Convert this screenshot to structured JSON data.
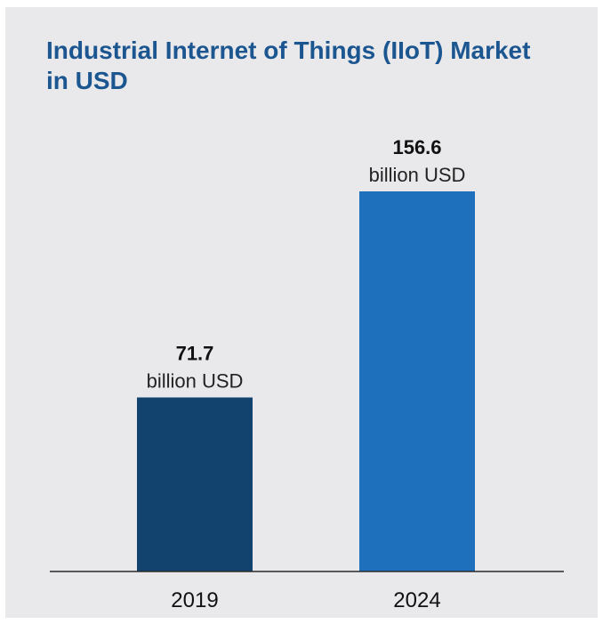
{
  "chart_data": {
    "type": "bar",
    "title": "Industrial Internet of Things (IIoT) Market in USD",
    "categories": [
      "2019",
      "2024"
    ],
    "values": [
      71.7,
      156.6
    ],
    "value_labels": [
      "71.7",
      "156.6"
    ],
    "unit_label": "billion USD",
    "bar_colors": [
      "#12426e",
      "#1e70bc"
    ],
    "ylim": [
      0,
      156.6
    ],
    "grid": false,
    "legend": "none",
    "xlabel": "",
    "ylabel": ""
  }
}
